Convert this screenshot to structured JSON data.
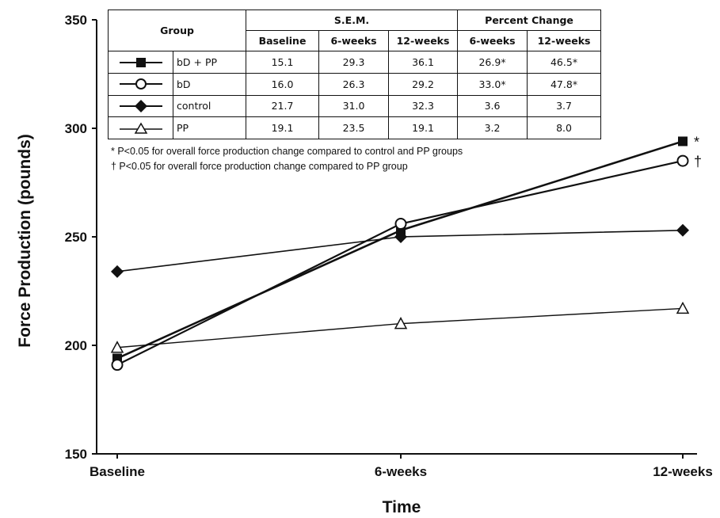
{
  "chart_data": {
    "type": "line",
    "title": "",
    "xlabel": "Time",
    "ylabel": "Force Production (pounds)",
    "categories": [
      "Baseline",
      "6-weeks",
      "12-weeks"
    ],
    "ylim": [
      150,
      350
    ],
    "yticks": [
      150,
      200,
      250,
      300,
      350
    ],
    "grid": false,
    "series": [
      {
        "name": "bD + PP",
        "marker": "filled-square",
        "values": [
          194,
          253,
          294
        ],
        "annotation": "*"
      },
      {
        "name": "bD",
        "marker": "open-circle",
        "values": [
          191,
          256,
          285
        ],
        "annotation": "†"
      },
      {
        "name": "control",
        "marker": "filled-diamond",
        "values": [
          234,
          250,
          253
        ],
        "annotation": ""
      },
      {
        "name": "PP",
        "marker": "open-triangle",
        "values": [
          199,
          210,
          217
        ],
        "annotation": ""
      }
    ],
    "table": {
      "header_group": "Group",
      "header_sem": "S.E.M.",
      "header_pct": "Percent Change",
      "subheaders": [
        "Baseline",
        "6-weeks",
        "12-weeks",
        "6-weeks",
        "12-weeks"
      ],
      "rows": [
        {
          "group": "bD + PP",
          "values": [
            "15.1",
            "29.3",
            "36.1",
            "26.9*",
            "46.5*"
          ]
        },
        {
          "group": "bD",
          "values": [
            "16.0",
            "26.3",
            "29.2",
            "33.0*",
            "47.8*"
          ]
        },
        {
          "group": "control",
          "values": [
            "21.7",
            "31.0",
            "32.3",
            "3.6",
            "3.7"
          ]
        },
        {
          "group": "PP",
          "values": [
            "19.1",
            "23.5",
            "19.1",
            "3.2",
            "8.0"
          ]
        }
      ]
    },
    "footnotes": [
      "* P<0.05 for overall  force production change compared to control and PP groups",
      "† P<0.05 for overall force production change compared to PP group"
    ]
  }
}
